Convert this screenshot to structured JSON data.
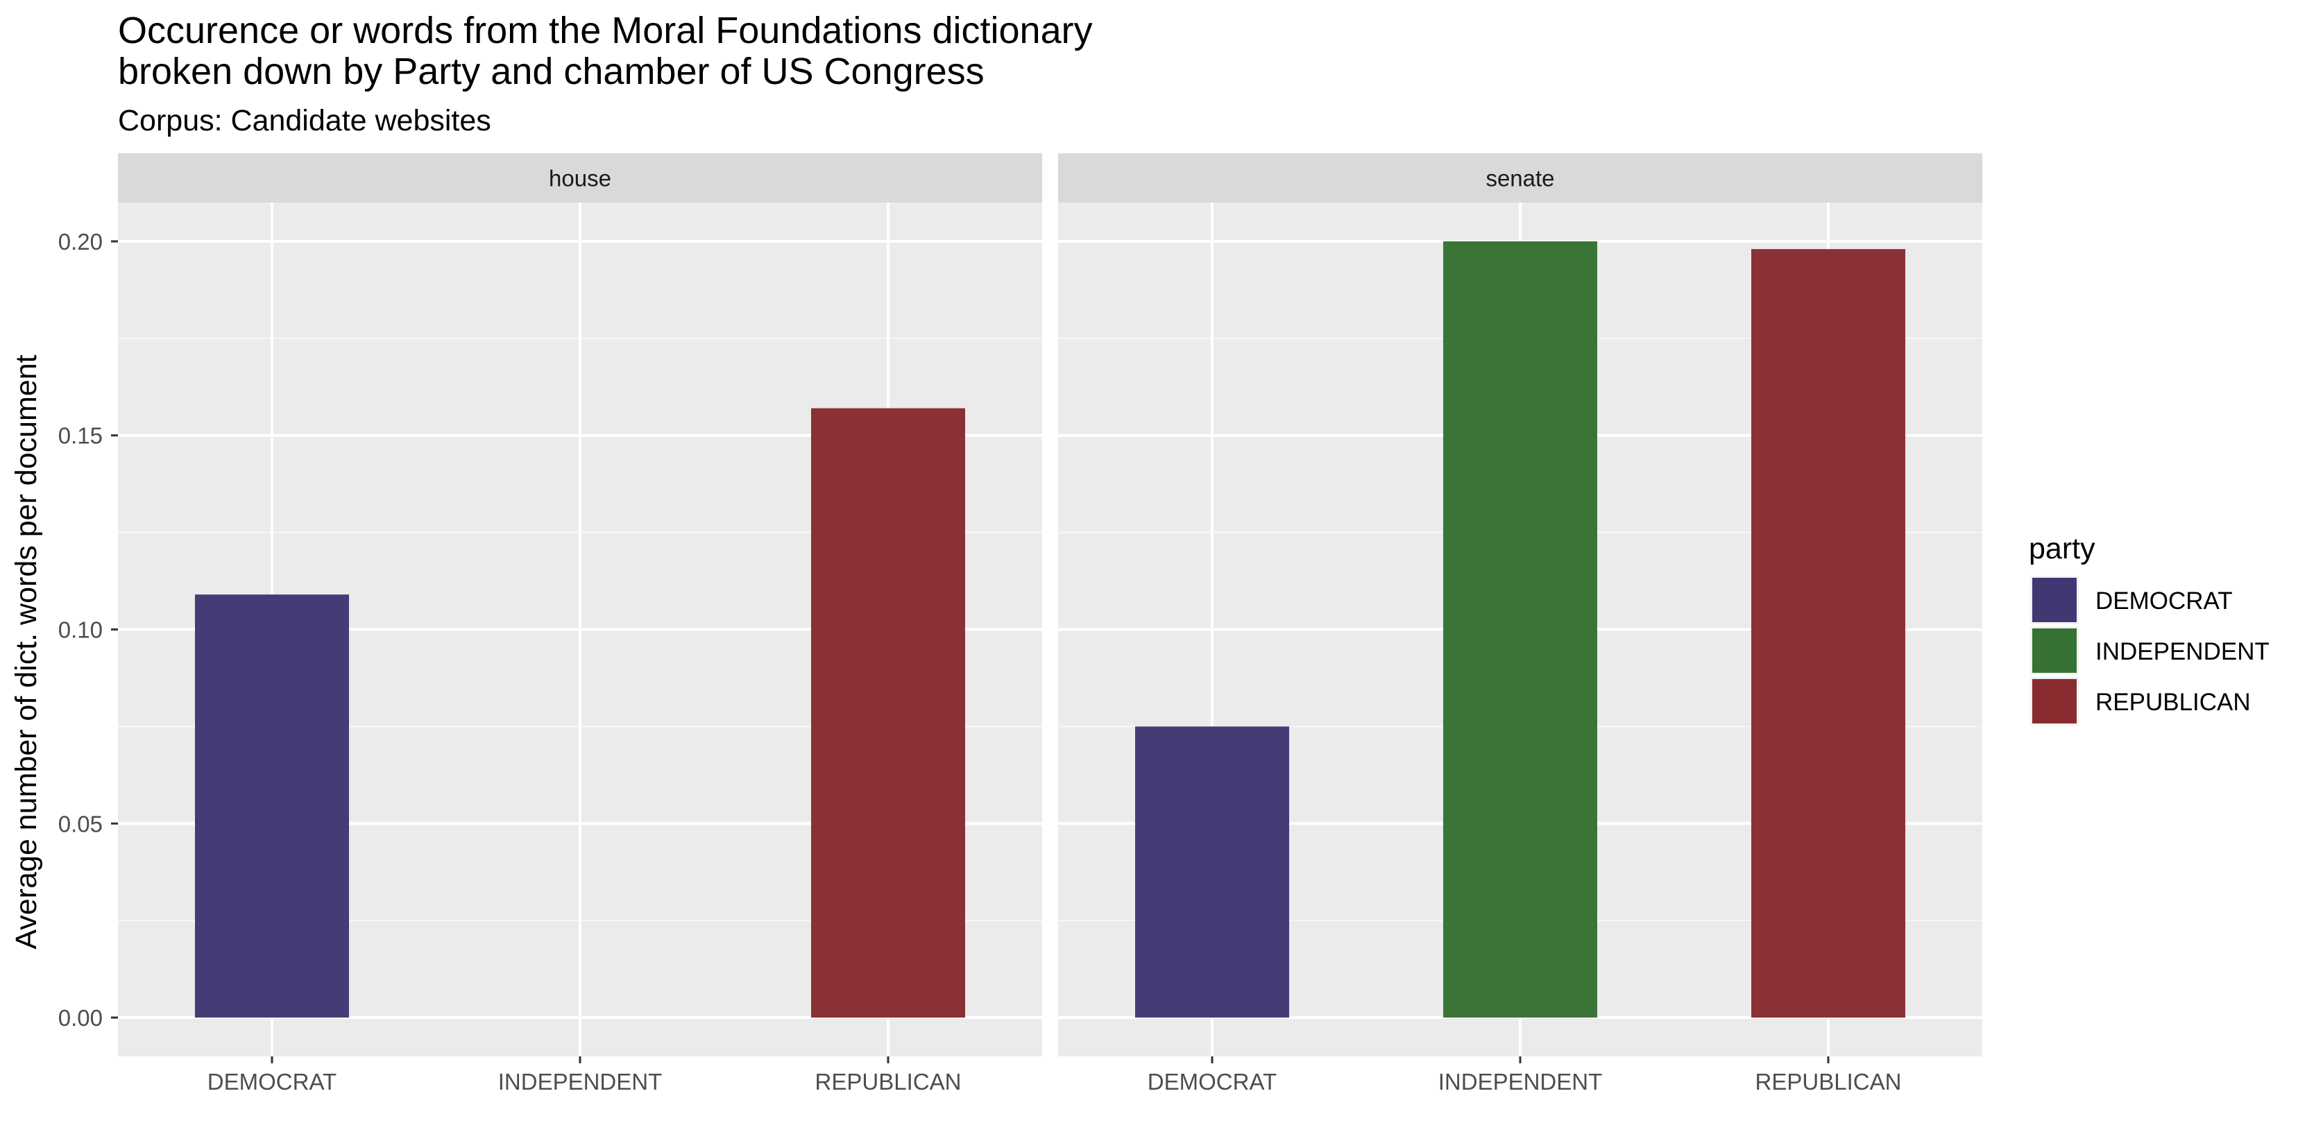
{
  "chart_data": {
    "type": "bar",
    "title": "Occurence or words from the Moral Foundations dictionary\nbroken down by Party and chamber of US Congress",
    "subtitle": "Corpus: Candidate websites",
    "xlabel": "",
    "ylabel": "Average number of dict. words per document",
    "categories": [
      "DEMOCRAT",
      "INDEPENDENT",
      "REPUBLICAN"
    ],
    "ylim": [
      -0.01,
      0.21
    ],
    "yticks": [
      "0.00",
      "0.05",
      "0.10",
      "0.15",
      "0.20"
    ],
    "grid": true,
    "facets": [
      {
        "label": "house",
        "values": [
          0.109,
          null,
          0.157
        ]
      },
      {
        "label": "senate",
        "values": [
          0.075,
          0.2,
          0.198
        ]
      }
    ],
    "legend": {
      "title": "party",
      "position": "right",
      "entries": [
        "DEMOCRAT",
        "INDEPENDENT",
        "REPUBLICAN"
      ]
    },
    "colors": {
      "DEMOCRAT": "#3f3873",
      "INDEPENDENT": "#367233",
      "REPUBLICAN": "#892c30"
    }
  }
}
